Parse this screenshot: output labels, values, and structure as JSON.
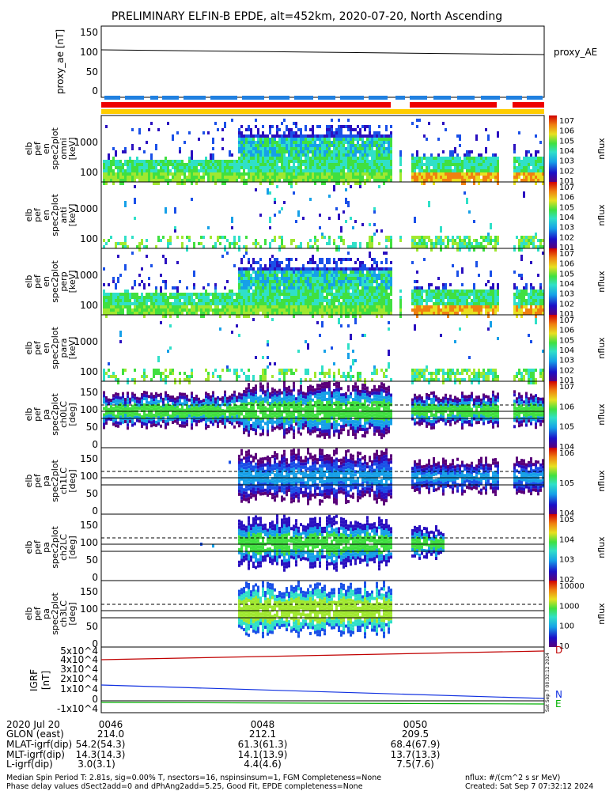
{
  "title": "PRELIMINARY ELFIN-B EPDE, alt=452km, 2020-07-20, North Ascending",
  "chart_data": [
    {
      "type": "line",
      "ylabel": "proxy_ae [nT]",
      "yticks": [
        "150",
        "100",
        "50",
        "0"
      ],
      "ylim": [
        -15,
        155
      ],
      "series": [
        {
          "name": "proxy_AE",
          "x": [
            0,
            1
          ],
          "y": [
            100,
            91
          ]
        }
      ],
      "legend": "proxy_AE"
    },
    {
      "type": "heatmap",
      "ylabel": [
        "elb",
        "pef",
        "en",
        "spec2plot",
        "omni",
        "[keV]"
      ],
      "yticks": [
        "1000",
        "100"
      ],
      "colorbar": {
        "label": "nflux",
        "ticks": [
          "10^7",
          "10^6",
          "10^5",
          "10^4",
          "10^3",
          "10^2",
          "10^1"
        ]
      }
    },
    {
      "type": "heatmap",
      "ylabel": [
        "elb",
        "pef",
        "en",
        "spec2plot",
        "anti",
        "[keV]"
      ],
      "yticks": [
        "1000",
        "100"
      ],
      "colorbar": {
        "label": "nflux",
        "ticks": [
          "10^7",
          "10^6",
          "10^5",
          "10^4",
          "10^3",
          "10^2",
          "10^1"
        ]
      }
    },
    {
      "type": "heatmap",
      "ylabel": [
        "elb",
        "pef",
        "en",
        "spec2plot",
        "perp",
        "[keV]"
      ],
      "yticks": [
        "1000",
        "100"
      ],
      "colorbar": {
        "label": "nflux",
        "ticks": [
          "10^7",
          "10^6",
          "10^5",
          "10^4",
          "10^3",
          "10^2",
          "10^1"
        ]
      }
    },
    {
      "type": "heatmap",
      "ylabel": [
        "elb",
        "pef",
        "en",
        "spec2plot",
        "para",
        "[keV]"
      ],
      "yticks": [
        "1000",
        "100"
      ],
      "colorbar": {
        "label": "nflux",
        "ticks": [
          "10^7",
          "10^6",
          "10^5",
          "10^4",
          "10^3",
          "10^2",
          "10^1"
        ]
      }
    },
    {
      "type": "heatmap",
      "ylabel": [
        "elb",
        "pef",
        "pa",
        "spec2plot",
        "ch0LC",
        "[deg]"
      ],
      "yticks": [
        "150",
        "100",
        "50",
        "0"
      ],
      "colorbar": {
        "label": "nflux",
        "ticks": [
          "10^7",
          "10^6",
          "10^5",
          "10^4"
        ]
      }
    },
    {
      "type": "heatmap",
      "ylabel": [
        "elb",
        "pef",
        "pa",
        "spec2plot",
        "ch1LC",
        "[deg]"
      ],
      "yticks": [
        "150",
        "100",
        "50",
        "0"
      ],
      "colorbar": {
        "label": "nflux",
        "ticks": [
          "10^6",
          "10^5",
          "10^4"
        ]
      }
    },
    {
      "type": "heatmap",
      "ylabel": [
        "elb",
        "pef",
        "pa",
        "spec2plot",
        "ch2LC",
        "[deg]"
      ],
      "yticks": [
        "150",
        "100",
        "50",
        "0"
      ],
      "colorbar": {
        "label": "nflux",
        "ticks": [
          "10^5",
          "10^4",
          "10^3",
          "10^2"
        ]
      }
    },
    {
      "type": "heatmap",
      "ylabel": [
        "elb",
        "pef",
        "pa",
        "spec2plot",
        "ch3LC",
        "[deg]"
      ],
      "yticks": [
        "150",
        "100",
        "50",
        "0"
      ],
      "colorbar": {
        "label": "nflux",
        "ticks": [
          "10000",
          "1000",
          "100",
          "10"
        ]
      }
    },
    {
      "type": "line",
      "ylabel": [
        "IGRF",
        "[nT]"
      ],
      "yticks": [
        "5x10^4",
        "4x10^4",
        "3x10^4",
        "2x10^4",
        "1x10^4",
        "0",
        "-1x10^4"
      ],
      "ylim": [
        -15000,
        52000
      ],
      "series": [
        {
          "name": "D",
          "x": [
            0,
            1
          ],
          "y": [
            42000,
            48500
          ],
          "color": "#c00000"
        },
        {
          "name": "N",
          "x": [
            0,
            1
          ],
          "y": [
            16000,
            1500
          ],
          "color": "#1030e0"
        },
        {
          "name": "E",
          "x": [
            0,
            1
          ],
          "y": [
            -200,
            -1000
          ],
          "color": "#00b000"
        }
      ]
    }
  ],
  "xaxis": {
    "rows": [
      {
        "label": "2020 Jul 20",
        "values": [
          "0046",
          "0048",
          "0050"
        ]
      },
      {
        "label": "GLON (east)",
        "values": [
          "214.0",
          "212.1",
          "209.5"
        ]
      },
      {
        "label": "MLAT-igrf(dip)",
        "values": [
          "54.2(54.3)",
          "61.3(61.3)",
          "68.4(67.9)"
        ]
      },
      {
        "label": "MLT-igrf(dip)",
        "values": [
          "14.3(14.3)",
          "14.1(13.9)",
          "13.7(13.3)"
        ]
      },
      {
        "label": "L-igrf(dip)",
        "values": [
          "3.0(3.1)",
          "4.4(4.6)",
          "7.5(7.6)"
        ]
      }
    ]
  },
  "footer": {
    "line1": "Median Spin Period T: 2.81s, sig=0.00% T, nsectors=16, nspinsinsum=1, FGM Completeness=None",
    "line2": "Phase delay values dSect2add=0 and dPhAng2add=5.25, Good Fit, EPDE completeness=None",
    "units": "nflux: #/(cm^2 s sr MeV)",
    "created": "Created: Sat Sep  7 07:32:12 2024",
    "side_stamp": "Sat Sep  7 00:32:12 2024"
  },
  "colors": {
    "red": "#ee0000",
    "blue": "#2080e0",
    "yellow": "#ffcc00"
  }
}
